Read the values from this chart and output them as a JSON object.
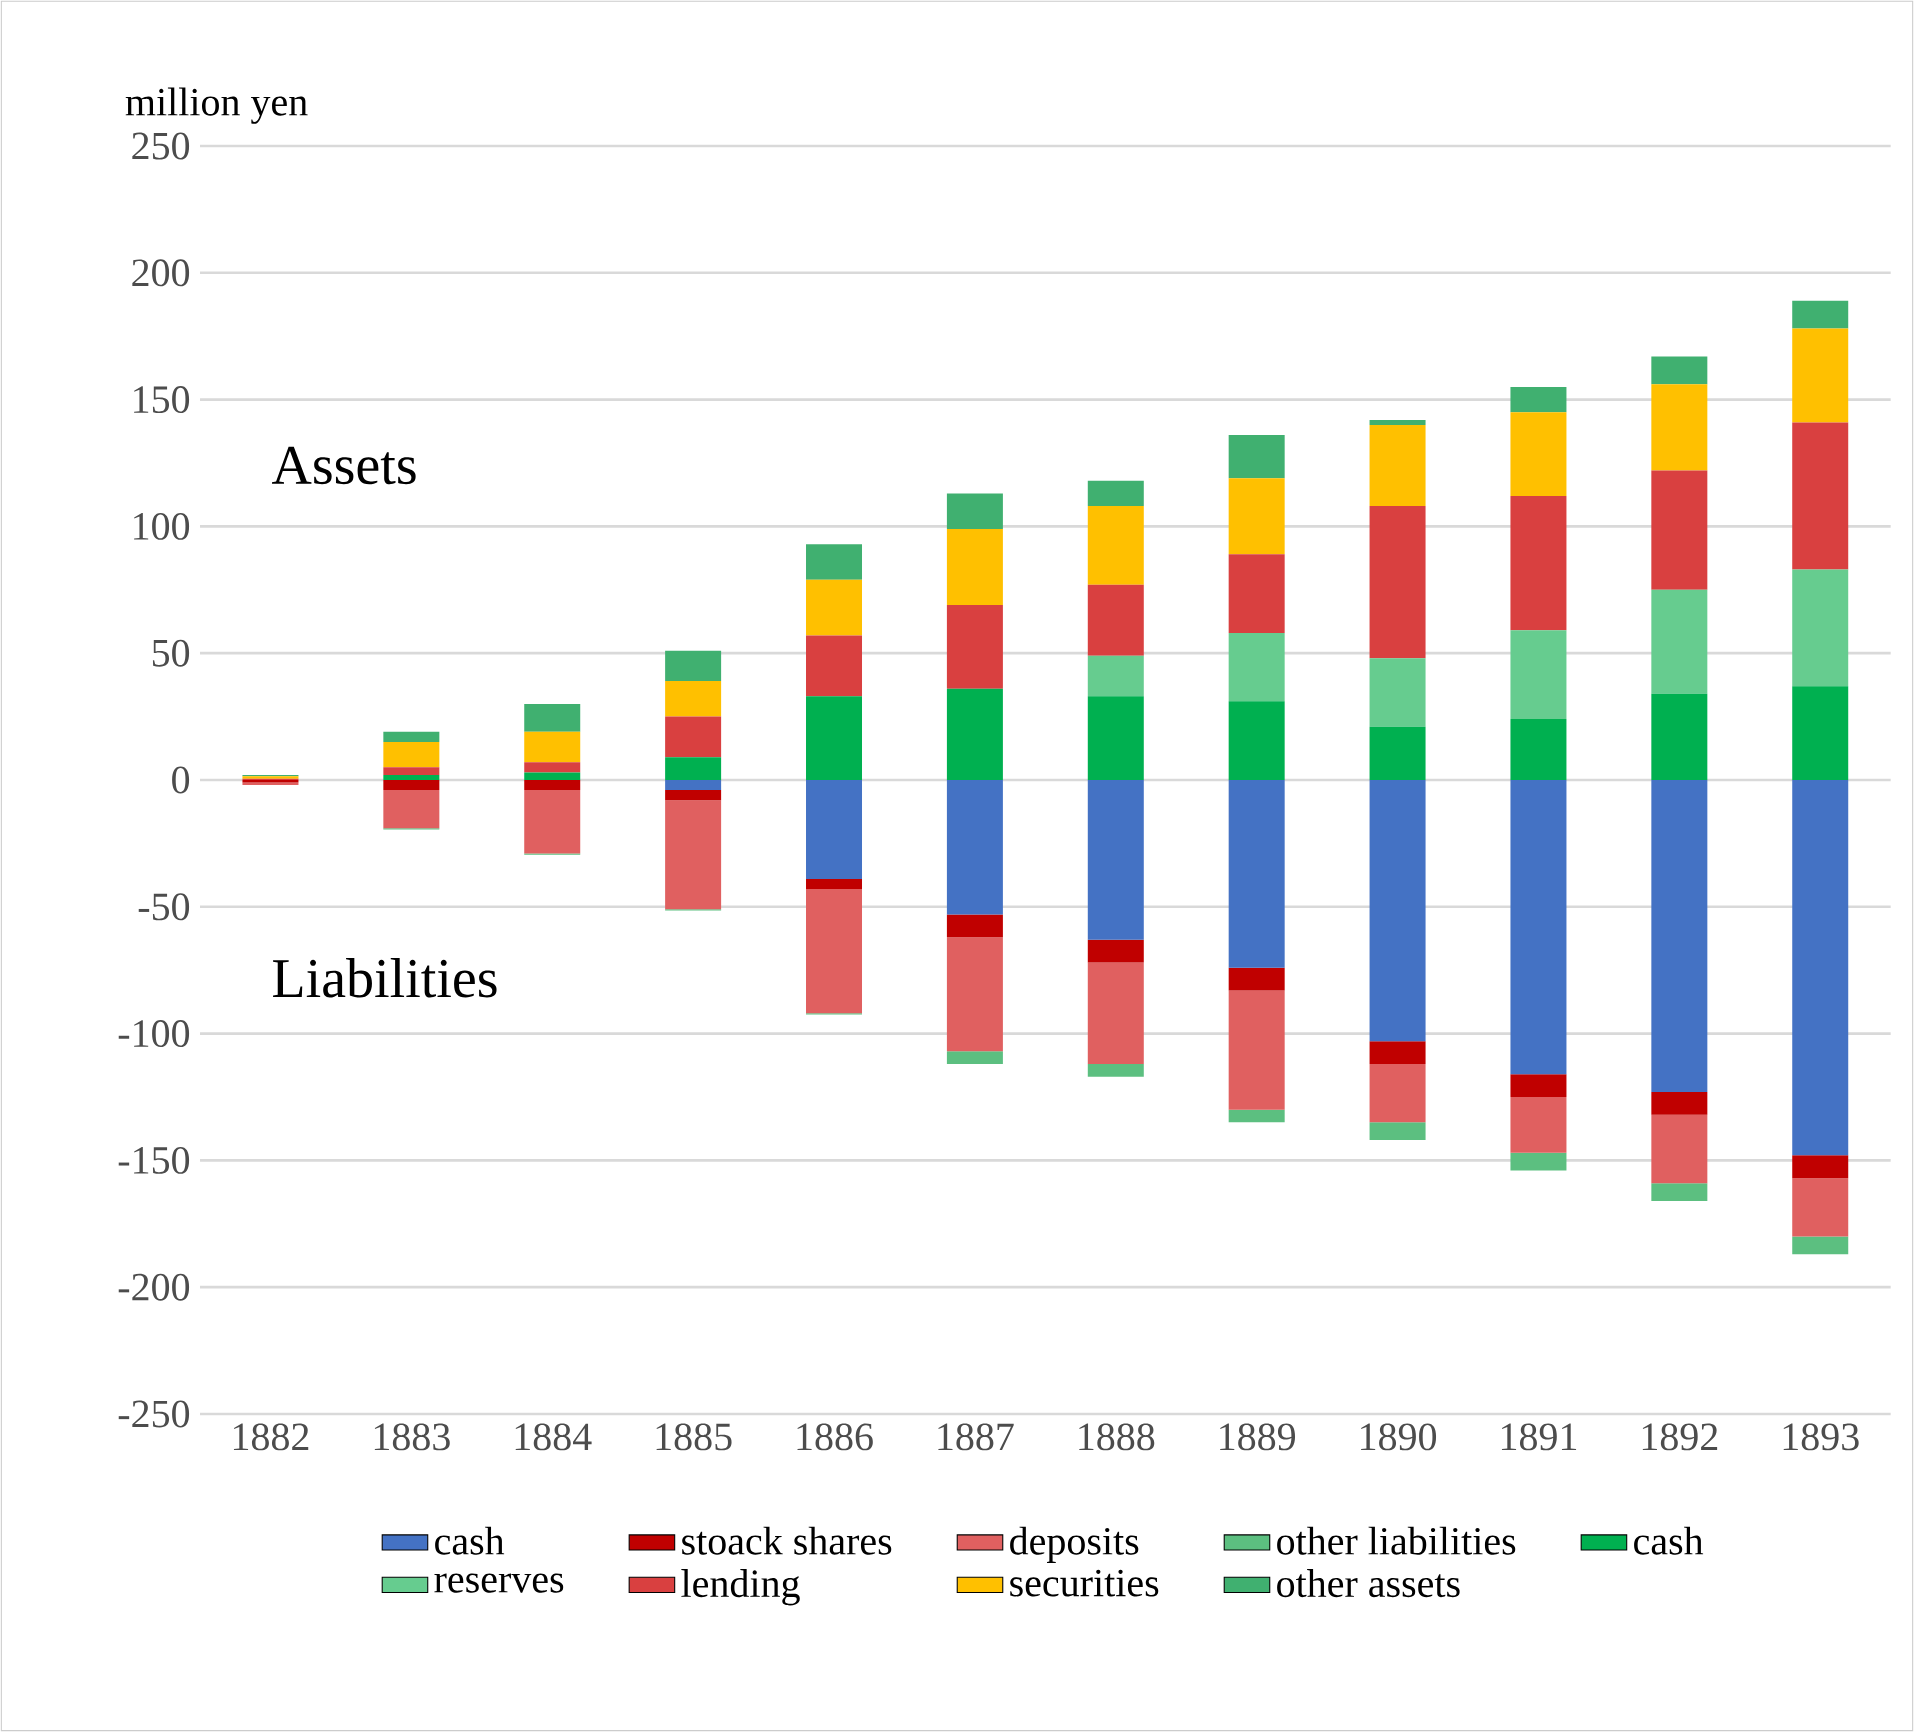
{
  "chart_data": {
    "type": "bar",
    "stacked": true,
    "ylabel": "million yen",
    "categories": [
      "1882",
      "1883",
      "1884",
      "1885",
      "1886",
      "1887",
      "1888",
      "1889",
      "1890",
      "1891",
      "1892",
      "1893"
    ],
    "series": [
      {
        "name": "cash",
        "color": "#4472c4",
        "values": [
          0,
          0,
          0,
          -4,
          -39,
          -53,
          -63,
          -74,
          -103,
          -116,
          -123,
          -148
        ]
      },
      {
        "name": "stoack shares",
        "color": "#c00000",
        "values": [
          -1,
          -4,
          -4,
          -4,
          -4,
          -9,
          -9,
          -9,
          -9,
          -9,
          -9,
          -9
        ]
      },
      {
        "name": "deposits",
        "color": "#e06060",
        "values": [
          -1,
          -15,
          -25,
          -43,
          -49,
          -45,
          -40,
          -47,
          -23,
          -22,
          -27,
          -23
        ]
      },
      {
        "name": "other liabilities",
        "color": "#5cbf80",
        "values": [
          0,
          -0.5,
          -0.5,
          -0.5,
          -0.5,
          -5,
          -5,
          -5,
          -7,
          -7,
          -7,
          -7
        ]
      },
      {
        "name": "cash",
        "color": "#00b050",
        "values": [
          0,
          2,
          3,
          9,
          33,
          36,
          33,
          31,
          21,
          24,
          34,
          37
        ]
      },
      {
        "name": "reserves",
        "color": "#66cc8f",
        "values": [
          0,
          0,
          0,
          0,
          0,
          0,
          16,
          27,
          27,
          35,
          41,
          46
        ]
      },
      {
        "name": "lending",
        "color": "#d94040",
        "values": [
          0.5,
          3,
          4,
          16,
          24,
          33,
          28,
          31,
          60,
          53,
          47,
          58
        ]
      },
      {
        "name": "securities",
        "color": "#ffc000",
        "values": [
          1,
          10,
          12,
          14,
          22,
          30,
          31,
          30,
          32,
          33,
          34,
          37
        ]
      },
      {
        "name": "other assets",
        "color": "#40b070",
        "values": [
          0.5,
          4,
          11,
          12,
          14,
          14,
          10,
          17,
          2,
          10,
          11,
          11
        ]
      }
    ],
    "ylim": [
      -250,
      250
    ],
    "yticks": [
      -250,
      -200,
      -150,
      -100,
      -50,
      0,
      50,
      100,
      150,
      200,
      250
    ],
    "grid": "y",
    "legend": "bottom",
    "annotations": [
      "Assets",
      "Liabilities"
    ]
  }
}
